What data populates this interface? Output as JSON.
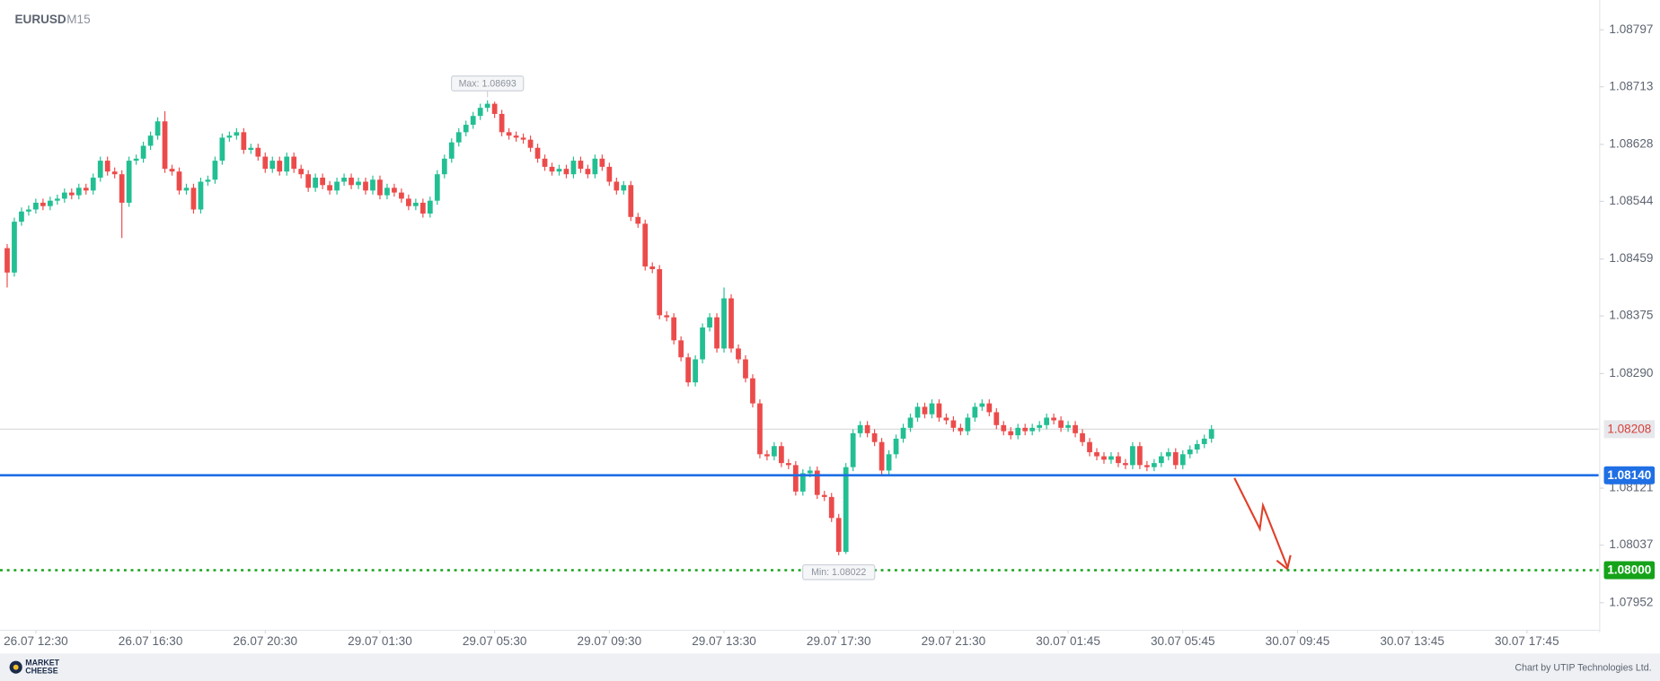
{
  "chart_data": {
    "type": "candlestick",
    "title": "EURUSD",
    "subtitle": "M15",
    "up_color": "#22bf93",
    "down_color": "#ec4b4b",
    "open": [
      1.08475,
      1.08439,
      1.08514,
      1.08529,
      1.08532,
      1.08542,
      1.08537,
      1.08545,
      1.08548,
      1.08557,
      1.08553,
      1.08564,
      1.0856,
      1.08579,
      1.08604,
      1.08588,
      1.08584,
      1.08542,
      1.08604,
      1.08607,
      1.08626,
      1.08641,
      1.08662,
      1.08592,
      1.08588,
      1.0856,
      1.08564,
      1.08532,
      1.08573,
      1.08576,
      1.08604,
      1.08638,
      1.08641,
      1.08646,
      1.0862,
      1.08623,
      1.0861,
      1.08592,
      1.08604,
      1.08588,
      1.0861,
      1.08592,
      1.08584,
      1.08564,
      1.08579,
      1.08568,
      1.0856,
      1.08573,
      1.08579,
      1.08568,
      1.08573,
      1.0856,
      1.08576,
      1.08553,
      1.08564,
      1.08557,
      1.08548,
      1.08537,
      1.08542,
      1.08526,
      1.08545,
      1.08584,
      1.08607,
      1.08631,
      1.08646,
      1.08657,
      1.0867,
      1.08682,
      1.08688,
      1.08673,
      1.08646,
      1.08641,
      1.08638,
      1.08635,
      1.08623,
      1.08607,
      1.08595,
      1.08588,
      1.08592,
      1.08584,
      1.08604,
      1.08592,
      1.08584,
      1.08607,
      1.08595,
      1.08573,
      1.0856,
      1.08568,
      1.08521,
      1.08511,
      1.08448,
      1.08444,
      1.08376,
      1.08373,
      1.08339,
      1.08314,
      1.08277,
      1.08311,
      1.08358,
      1.08373,
      1.08327,
      1.08401,
      1.08327,
      1.08311,
      1.08283,
      1.08246,
      1.08171,
      1.08168,
      1.08183,
      1.08158,
      1.08155,
      1.08116,
      1.08143,
      1.08147,
      1.08111,
      1.08108,
      1.08077,
      1.08027,
      1.08152,
      1.08202,
      1.08214,
      1.08202,
      1.08189,
      1.08147,
      1.08171,
      1.08194,
      1.0821,
      1.08225,
      1.08241,
      1.0823,
      1.08246,
      1.08225,
      1.08221,
      1.0821,
      1.08205,
      1.08225,
      1.08241,
      1.08246,
      1.08233,
      1.08214,
      1.08205,
      1.08199,
      1.0821,
      1.08205,
      1.0821,
      1.08214,
      1.08225,
      1.08221,
      1.0821,
      1.08214,
      1.08202,
      1.08189,
      1.08174,
      1.08168,
      1.08163,
      1.08168,
      1.08158,
      1.08155,
      1.08183,
      1.08155,
      1.08152,
      1.08158,
      1.08168,
      1.08174,
      1.08155,
      1.08171,
      1.08178,
      1.08186,
      1.08194
    ],
    "high": [
      1.08481,
      1.0852,
      1.08535,
      1.08538,
      1.08548,
      1.08548,
      1.08551,
      1.08554,
      1.08563,
      1.08563,
      1.0857,
      1.0857,
      1.08585,
      1.0861,
      1.0861,
      1.08594,
      1.0859,
      1.0861,
      1.08613,
      1.08632,
      1.08647,
      1.08668,
      1.08677,
      1.08598,
      1.08594,
      1.0857,
      1.0857,
      1.08579,
      1.08582,
      1.0861,
      1.08644,
      1.08647,
      1.08652,
      1.08652,
      1.08629,
      1.08629,
      1.08616,
      1.0861,
      1.0861,
      1.08616,
      1.08616,
      1.08598,
      1.0859,
      1.08585,
      1.08585,
      1.08574,
      1.08579,
      1.08585,
      1.08585,
      1.08579,
      1.08579,
      1.08582,
      1.08582,
      1.0857,
      1.0857,
      1.08563,
      1.08554,
      1.08548,
      1.08548,
      1.08551,
      1.0859,
      1.08613,
      1.08637,
      1.08652,
      1.08663,
      1.08676,
      1.08688,
      1.08693,
      1.08691,
      1.08679,
      1.08652,
      1.08647,
      1.08644,
      1.08641,
      1.08629,
      1.08613,
      1.08601,
      1.08598,
      1.08598,
      1.0861,
      1.0861,
      1.08598,
      1.08613,
      1.08613,
      1.08601,
      1.08579,
      1.08574,
      1.08574,
      1.08527,
      1.08517,
      1.08454,
      1.0845,
      1.08382,
      1.08379,
      1.08345,
      1.0832,
      1.08317,
      1.08364,
      1.08379,
      1.08379,
      1.08417,
      1.08407,
      1.08333,
      1.08317,
      1.08289,
      1.08252,
      1.08177,
      1.08189,
      1.08189,
      1.08164,
      1.08161,
      1.08149,
      1.08153,
      1.08153,
      1.08117,
      1.08114,
      1.08083,
      1.08158,
      1.08208,
      1.0822,
      1.0822,
      1.08208,
      1.08195,
      1.08177,
      1.082,
      1.08216,
      1.08231,
      1.08247,
      1.08247,
      1.08252,
      1.08252,
      1.08231,
      1.08227,
      1.08216,
      1.08231,
      1.08247,
      1.08252,
      1.08252,
      1.08239,
      1.0822,
      1.08211,
      1.08216,
      1.08216,
      1.08216,
      1.0822,
      1.08231,
      1.08231,
      1.08227,
      1.0822,
      1.0822,
      1.08208,
      1.08195,
      1.0818,
      1.08174,
      1.08174,
      1.08174,
      1.08164,
      1.08189,
      1.08189,
      1.08161,
      1.08164,
      1.08174,
      1.0818,
      1.0818,
      1.08177,
      1.08184,
      1.08192,
      1.082,
      1.08214
    ],
    "low": [
      1.08417,
      1.08433,
      1.08508,
      1.08523,
      1.08526,
      1.08531,
      1.08531,
      1.08539,
      1.08542,
      1.08547,
      1.08547,
      1.08554,
      1.08554,
      1.08573,
      1.08582,
      1.08578,
      1.0849,
      1.08536,
      1.08598,
      1.08601,
      1.0862,
      1.08635,
      1.08586,
      1.08582,
      1.08554,
      1.08554,
      1.08526,
      1.08526,
      1.08567,
      1.0857,
      1.08598,
      1.08632,
      1.08635,
      1.08614,
      1.08614,
      1.08604,
      1.08586,
      1.08586,
      1.08582,
      1.08582,
      1.08586,
      1.08578,
      1.08558,
      1.08558,
      1.08562,
      1.08554,
      1.08554,
      1.08567,
      1.08562,
      1.08562,
      1.08554,
      1.08554,
      1.08547,
      1.08547,
      1.08551,
      1.08542,
      1.08531,
      1.08531,
      1.0852,
      1.0852,
      1.08539,
      1.08578,
      1.08601,
      1.08625,
      1.0864,
      1.08651,
      1.08664,
      1.08676,
      1.08667,
      1.0864,
      1.08635,
      1.08632,
      1.08629,
      1.08617,
      1.08601,
      1.08589,
      1.08582,
      1.08582,
      1.08578,
      1.08578,
      1.08586,
      1.08578,
      1.08578,
      1.08589,
      1.08567,
      1.08554,
      1.08554,
      1.08515,
      1.08505,
      1.08442,
      1.08438,
      1.0837,
      1.08367,
      1.08333,
      1.08308,
      1.08271,
      1.08271,
      1.08305,
      1.08352,
      1.08321,
      1.08321,
      1.08321,
      1.08305,
      1.08277,
      1.0824,
      1.08165,
      1.08162,
      1.08162,
      1.08152,
      1.08149,
      1.0811,
      1.0811,
      1.08137,
      1.08105,
      1.08102,
      1.08071,
      1.08022,
      1.08024,
      1.08146,
      1.08196,
      1.08196,
      1.08183,
      1.08141,
      1.08141,
      1.08165,
      1.08188,
      1.08204,
      1.08219,
      1.08224,
      1.08224,
      1.08219,
      1.08215,
      1.08204,
      1.08199,
      1.08199,
      1.08219,
      1.08235,
      1.08227,
      1.08208,
      1.08199,
      1.08193,
      1.08193,
      1.08199,
      1.08199,
      1.08204,
      1.08208,
      1.08215,
      1.08204,
      1.08204,
      1.08196,
      1.08183,
      1.08168,
      1.08162,
      1.08157,
      1.08157,
      1.08152,
      1.08149,
      1.08149,
      1.08149,
      1.08146,
      1.08146,
      1.08152,
      1.08162,
      1.08149,
      1.08149,
      1.08165,
      1.08172,
      1.0818,
      1.08188
    ],
    "close": [
      1.08439,
      1.08514,
      1.08529,
      1.08532,
      1.08542,
      1.08537,
      1.08545,
      1.08548,
      1.08557,
      1.08553,
      1.08564,
      1.0856,
      1.08579,
      1.08604,
      1.08588,
      1.08584,
      1.08542,
      1.08604,
      1.08607,
      1.08626,
      1.08641,
      1.08662,
      1.08592,
      1.08588,
      1.0856,
      1.08564,
      1.08532,
      1.08573,
      1.08576,
      1.08604,
      1.08638,
      1.08641,
      1.08646,
      1.0862,
      1.08623,
      1.0861,
      1.08592,
      1.08604,
      1.08588,
      1.0861,
      1.08592,
      1.08584,
      1.08564,
      1.08579,
      1.08568,
      1.0856,
      1.08573,
      1.08579,
      1.08568,
      1.08573,
      1.0856,
      1.08576,
      1.08553,
      1.08564,
      1.08557,
      1.08548,
      1.08537,
      1.08542,
      1.08526,
      1.08545,
      1.08584,
      1.08607,
      1.08631,
      1.08646,
      1.08657,
      1.0867,
      1.08682,
      1.08688,
      1.08673,
      1.08646,
      1.08641,
      1.08638,
      1.08635,
      1.08623,
      1.08607,
      1.08595,
      1.08588,
      1.08592,
      1.08584,
      1.08604,
      1.08592,
      1.08584,
      1.08607,
      1.08595,
      1.08573,
      1.0856,
      1.08568,
      1.08521,
      1.08511,
      1.08448,
      1.08444,
      1.08376,
      1.08373,
      1.08339,
      1.08314,
      1.08277,
      1.08311,
      1.08358,
      1.08373,
      1.08327,
      1.08401,
      1.08327,
      1.08311,
      1.08283,
      1.08246,
      1.08171,
      1.08168,
      1.08183,
      1.08158,
      1.08155,
      1.08116,
      1.08143,
      1.08147,
      1.08111,
      1.08108,
      1.08077,
      1.08027,
      1.08152,
      1.08202,
      1.08214,
      1.08202,
      1.08189,
      1.08147,
      1.08171,
      1.08194,
      1.0821,
      1.08225,
      1.08241,
      1.0823,
      1.08246,
      1.08225,
      1.08221,
      1.0821,
      1.08205,
      1.08225,
      1.08241,
      1.08246,
      1.08233,
      1.08214,
      1.08205,
      1.08199,
      1.0821,
      1.08205,
      1.0821,
      1.08214,
      1.08225,
      1.08221,
      1.0821,
      1.08214,
      1.08202,
      1.08189,
      1.08174,
      1.08168,
      1.08163,
      1.08168,
      1.08158,
      1.08155,
      1.08183,
      1.08155,
      1.08152,
      1.08158,
      1.08168,
      1.08174,
      1.08155,
      1.08171,
      1.08178,
      1.08186,
      1.08194,
      1.08208
    ],
    "xlim": [
      -1,
      222
    ],
    "xticks": [
      {
        "value": 4,
        "label": "26.07 12:30"
      },
      {
        "value": 20,
        "label": "26.07 16:30"
      },
      {
        "value": 36,
        "label": "26.07 20:30"
      },
      {
        "value": 52,
        "label": "29.07 01:30"
      },
      {
        "value": 68,
        "label": "29.07 05:30"
      },
      {
        "value": 84,
        "label": "29.07 09:30"
      },
      {
        "value": 100,
        "label": "29.07 13:30"
      },
      {
        "value": 116,
        "label": "29.07 17:30"
      },
      {
        "value": 132,
        "label": "29.07 21:30"
      },
      {
        "value": 148,
        "label": "30.07 01:45"
      },
      {
        "value": 164,
        "label": "30.07 05:45"
      },
      {
        "value": 180,
        "label": "30.07 09:45"
      },
      {
        "value": 196,
        "label": "30.07 13:45"
      },
      {
        "value": 212,
        "label": "30.07 17:45"
      }
    ],
    "ylim": [
      1.07913,
      1.08841
    ],
    "yticks": [
      1.08797,
      1.08713,
      1.08628,
      1.08544,
      1.08459,
      1.08375,
      {
        "value": 1.0829,
        "label": "1.08290"
      },
      1.08121,
      1.08037,
      1.07952
    ],
    "current_price": 1.08208,
    "levels": [
      {
        "value": 1.0814,
        "label": "1.08140",
        "color": "#1f6fe5",
        "style": "solid"
      },
      {
        "value": 1.08,
        "label": "1.08000",
        "color": "#16a31a",
        "style": "dotted"
      }
    ],
    "max_label": "Max: 1.08693",
    "min_label": "Min: 1.08022"
  },
  "footer": {
    "logo": [
      "MARKET",
      "CHEESE"
    ],
    "credit": "Chart by UTIP Technologies Ltd."
  }
}
